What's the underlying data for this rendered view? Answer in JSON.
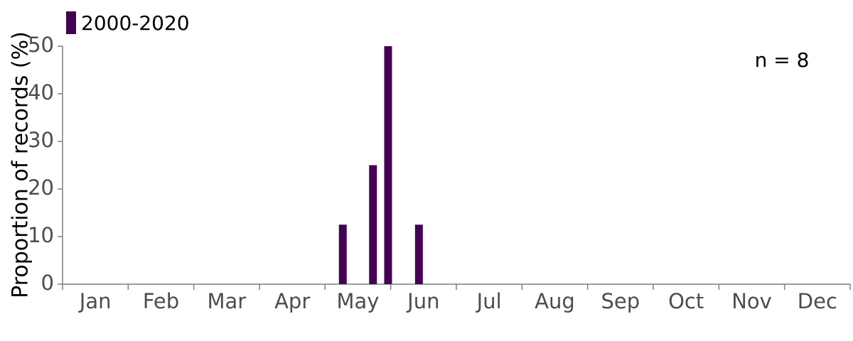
{
  "chart_data": {
    "type": "bar",
    "series": [
      {
        "name": "2000-2020",
        "color": "#440154",
        "x": [
          4.27,
          4.73,
          4.96,
          5.43
        ],
        "values": [
          12.5,
          25,
          50,
          12.5
        ]
      }
    ],
    "ylabel": "Proportion of records (%)",
    "annotation": "n = 8",
    "xlim": [
      0,
      12
    ],
    "xticks": [
      {
        "value": 0.5,
        "label": "Jan"
      },
      {
        "value": 1.5,
        "label": "Feb"
      },
      {
        "value": 2.5,
        "label": "Mar"
      },
      {
        "value": 3.5,
        "label": "Apr"
      },
      {
        "value": 4.5,
        "label": "May"
      },
      {
        "value": 5.5,
        "label": "Jun"
      },
      {
        "value": 6.5,
        "label": "Jul"
      },
      {
        "value": 7.5,
        "label": "Aug"
      },
      {
        "value": 8.5,
        "label": "Sep"
      },
      {
        "value": 9.5,
        "label": "Oct"
      },
      {
        "value": 10.5,
        "label": "Nov"
      },
      {
        "value": 11.5,
        "label": "Dec"
      }
    ],
    "ylim": [
      0,
      50
    ],
    "yticks": [
      0,
      10,
      20,
      30,
      40,
      50
    ],
    "grid": false
  }
}
